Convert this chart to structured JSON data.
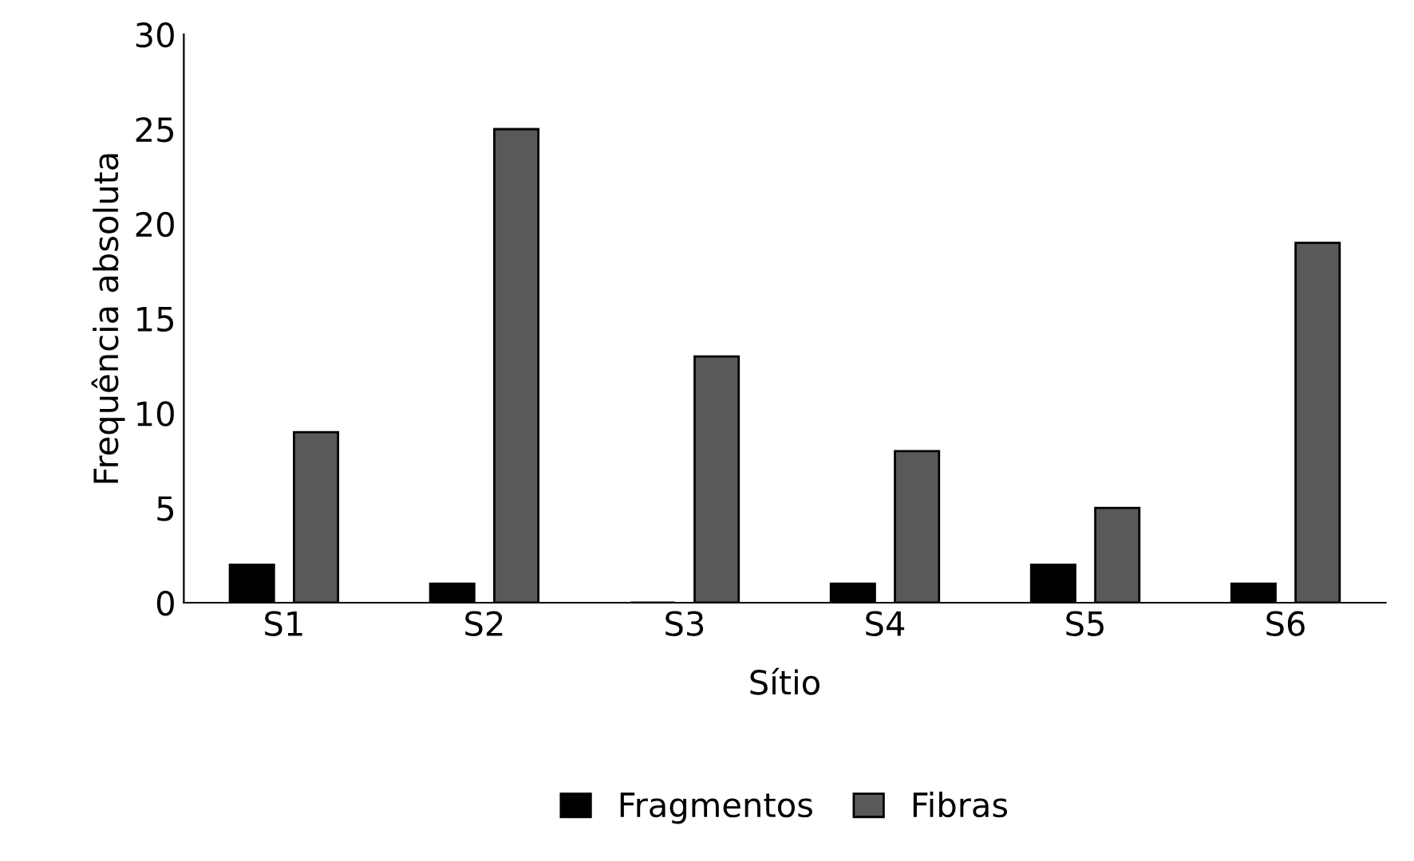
{
  "chart_data": {
    "type": "bar",
    "xlabel": "Sítio",
    "ylabel": "Frequência absoluta",
    "categories": [
      "S1",
      "S2",
      "S3",
      "S4",
      "S5",
      "S6"
    ],
    "series": [
      {
        "name": "Fragmentos",
        "color": "#000000",
        "values": [
          2,
          1,
          0,
          1,
          2,
          1
        ]
      },
      {
        "name": "Fibras",
        "color": "#595959",
        "values": [
          9,
          25,
          13,
          8,
          5,
          19
        ]
      }
    ],
    "ylim": [
      0,
      30
    ],
    "yticks": [
      0,
      5,
      10,
      15,
      20,
      25,
      30
    ],
    "grid": false,
    "legend": "bottom"
  }
}
